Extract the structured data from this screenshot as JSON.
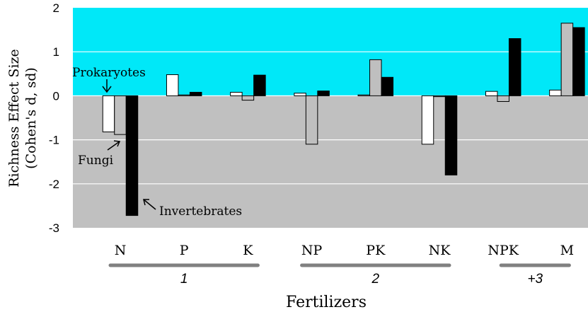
{
  "chart_data": {
    "type": "bar",
    "ylabel_lines": [
      "Richness Effect Size",
      "(Cohen's d, sd)"
    ],
    "xlabel": "Fertilizers",
    "ylim": [
      -3,
      2
    ],
    "yticks": [
      2,
      1,
      0,
      -1,
      -2,
      -3
    ],
    "ytick_labels": [
      "2",
      "1",
      "0",
      "-1",
      "-2",
      "-3"
    ],
    "categories": [
      "N",
      "P",
      "K",
      "NP",
      "PK",
      "NK",
      "NPK",
      "M"
    ],
    "series": [
      {
        "name": "Prokaryotes",
        "color": "#ffffff",
        "values": [
          -0.82,
          0.48,
          0.08,
          0.06,
          0.02,
          -1.1,
          0.1,
          0.13
        ]
      },
      {
        "name": "Fungi",
        "color": "#bfbfbf",
        "values": [
          -0.88,
          0.02,
          -0.1,
          -1.1,
          0.82,
          -0.02,
          -0.13,
          1.65
        ]
      },
      {
        "name": "Invertebrates",
        "color": "#000000",
        "values": [
          -2.72,
          0.08,
          0.47,
          0.11,
          0.42,
          -1.8,
          1.3,
          1.55
        ]
      }
    ],
    "background": {
      "positive_color": "#00e8f8",
      "negative_color": "#c0c0c0"
    },
    "groups": [
      {
        "label": "1",
        "categories": [
          "N",
          "P",
          "K"
        ]
      },
      {
        "label": "2",
        "categories": [
          "NP",
          "PK",
          "NK"
        ]
      },
      {
        "label": "+3",
        "categories": [
          "NPK",
          "M"
        ]
      }
    ],
    "annotations": [
      "Prokaryotes",
      "Fungi",
      "Invertebrates"
    ]
  }
}
